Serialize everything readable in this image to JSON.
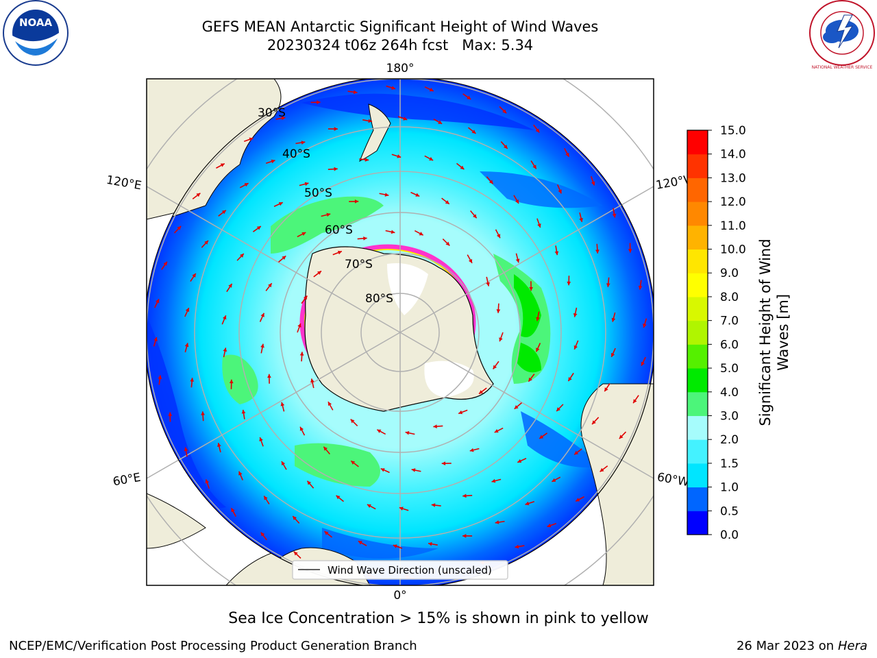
{
  "header": {
    "title_line1": "GEFS MEAN Antarctic Significant Height of Wind Waves",
    "title_line2": "20230324 t06z 264h fcst   Max: 5.34"
  },
  "logos": {
    "left": {
      "icon": "noaa-logo-icon",
      "text": "NOAA"
    },
    "right": {
      "icon": "nws-logo-icon",
      "text": "NATIONAL WEATHER SERVICE"
    }
  },
  "map": {
    "projection": "south-polar-stereographic",
    "longitude_labels": [
      "180°",
      "120°E",
      "120°W",
      "60°E",
      "60°W",
      "0°"
    ],
    "latitude_labels": [
      "30°S",
      "40°S",
      "50°S",
      "60°S",
      "70°S",
      "80°S"
    ],
    "legend_label": "Wind Wave Direction (unscaled)",
    "land_color": "#efedda",
    "ice_color_range": [
      "#ff33cc",
      "#ffff33"
    ],
    "arrow_color": "#e00000"
  },
  "colorbar": {
    "label_line1": "Significant Height of Wind",
    "label_line2": "Waves [m]",
    "ticks": [
      "0.0",
      "0.5",
      "1.0",
      "1.5",
      "2.0",
      "3.0",
      "4.0",
      "5.0",
      "6.0",
      "7.0",
      "8.0",
      "9.0",
      "10.0",
      "11.0",
      "12.0",
      "13.0",
      "14.0",
      "15.0"
    ],
    "colors": [
      "#0000ff",
      "#0066ff",
      "#00e5ff",
      "#44f2ff",
      "#a6fcfc",
      "#4cf57a",
      "#00ea00",
      "#55f000",
      "#b0f500",
      "#d8f800",
      "#ffff00",
      "#ffe600",
      "#ffb300",
      "#ff8800",
      "#ff6600",
      "#ff3300",
      "#ff0000"
    ]
  },
  "footer": {
    "note": "Sea Ice Concentration > 15% is shown in pink to yellow",
    "left": "NCEP/EMC/Verification Post Processing Product Generation Branch",
    "date": "26 Mar 2023 on",
    "machine": "Hera"
  }
}
